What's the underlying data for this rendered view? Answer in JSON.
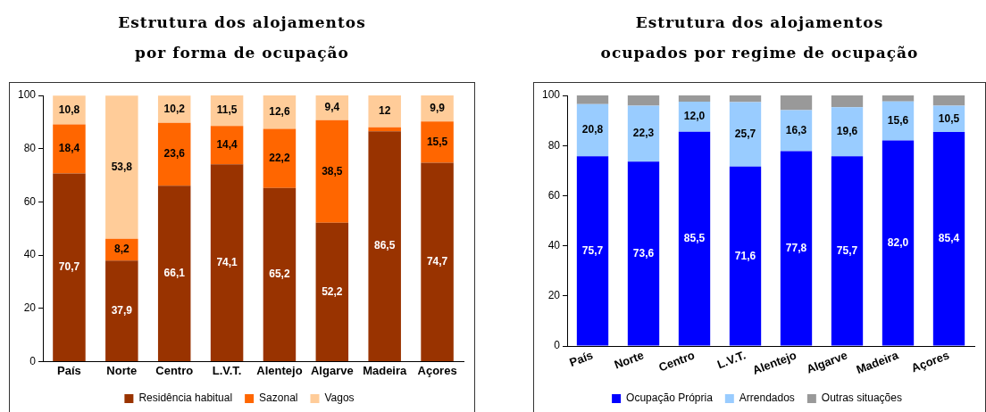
{
  "chart_data": [
    {
      "type": "bar",
      "title": "Estrutura dos alojamentos por forma de ocupação",
      "stacked": true,
      "legend": "bottom",
      "grid": false,
      "categories": [
        "País",
        "Norte",
        "Centro",
        "L.V.T.",
        "Alentejo",
        "Algarve",
        "Madeira",
        "Açores"
      ],
      "ylim": [
        0,
        100
      ],
      "yticks": [
        0,
        20,
        40,
        60,
        80,
        100
      ],
      "series": [
        {
          "name": "Residência habitual",
          "color": "#993300",
          "values": [
            70.7,
            37.9,
            66.1,
            74.1,
            65.2,
            52.2,
            86.5,
            74.7
          ],
          "value_labels": [
            "70,7",
            "37,9",
            "66,1",
            "74,1",
            "65,2",
            "52,2",
            "86,5",
            "74,7"
          ]
        },
        {
          "name": "Sazonal",
          "color": "#ff6600",
          "values": [
            18.4,
            8.2,
            23.6,
            14.4,
            22.2,
            38.5,
            1.5,
            15.5
          ],
          "value_labels": [
            "18,4",
            "8,2",
            "23,6",
            "14,4",
            "22,2",
            "38,5",
            null,
            "15,5"
          ]
        },
        {
          "name": "Vagos",
          "color": "#ffcc99",
          "values": [
            10.8,
            53.8,
            10.2,
            11.5,
            12.6,
            9.4,
            12,
            9.9
          ],
          "value_labels": [
            "10,8",
            "53,8",
            "10,2",
            "11,5",
            "12,6",
            "9,4",
            "12",
            "9,9"
          ]
        }
      ]
    },
    {
      "type": "bar",
      "title": "Estrutura dos alojamentos ocupados por regime de ocupação",
      "stacked": true,
      "legend": "bottom",
      "grid": false,
      "categories": [
        "País",
        "Norte",
        "Centro",
        "L.V.T.",
        "Alentejo",
        "Algarve",
        "Madeira",
        "Açores"
      ],
      "ylim": [
        0,
        100
      ],
      "yticks": [
        0,
        20,
        40,
        60,
        80,
        100
      ],
      "series": [
        {
          "name": "Ocupação Própria",
          "color": "#0000ff",
          "values": [
            75.7,
            73.6,
            85.5,
            71.6,
            77.8,
            75.7,
            82.0,
            85.4
          ],
          "value_labels": [
            "75,7",
            "73,6",
            "85,5",
            "71,6",
            "77,8",
            "75,7",
            "82,0",
            "85,4"
          ]
        },
        {
          "name": "Arrendados",
          "color": "#99ccff",
          "values": [
            20.8,
            22.3,
            12.0,
            25.7,
            16.3,
            19.6,
            15.6,
            10.5
          ],
          "value_labels": [
            "20,8",
            "22,3",
            "12,0",
            "25,7",
            "16,3",
            "19,6",
            "15,6",
            "10,5"
          ]
        },
        {
          "name": "Outras situações",
          "color": "#999999",
          "values": [
            3.5,
            4.1,
            2.5,
            2.7,
            5.9,
            4.7,
            2.4,
            4.1
          ]
        }
      ]
    }
  ]
}
